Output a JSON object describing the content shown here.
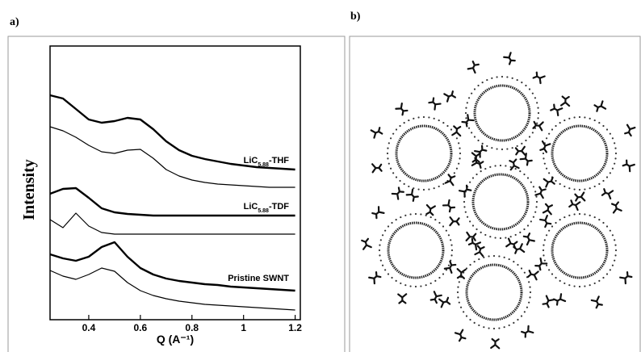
{
  "panel_labels": [
    "a)",
    "b)"
  ],
  "chart_data": {
    "type": "line",
    "ylabel": "Intensity",
    "xlabel": "Q (A⁻¹)",
    "x": [
      0.25,
      0.3,
      0.35,
      0.4,
      0.45,
      0.5,
      0.55,
      0.6,
      0.65,
      0.7,
      0.75,
      0.8,
      0.85,
      0.9,
      0.95,
      1.0,
      1.05,
      1.1,
      1.15,
      1.2
    ],
    "xlim": [
      0.25,
      1.22
    ],
    "xticks": [
      0.4,
      0.6,
      0.8,
      1,
      1.2
    ],
    "ylim": [
      0,
      33.9
    ],
    "series": [
      {
        "color": "#000000",
        "width": 2.4,
        "values": [
          27.8,
          27.4,
          26.1,
          24.8,
          24.4,
          24.6,
          25.0,
          24.8,
          23.6,
          22.1,
          21.0,
          20.3,
          19.9,
          19.6,
          19.3,
          19.1,
          18.9,
          18.8,
          18.7,
          18.6
        ]
      },
      {
        "color": "#000000",
        "width": 1.2,
        "values": [
          23.9,
          23.4,
          22.6,
          21.6,
          20.8,
          20.6,
          21.0,
          21.1,
          20.0,
          18.6,
          17.8,
          17.3,
          17.0,
          16.8,
          16.7,
          16.6,
          16.5,
          16.4,
          16.4,
          16.4
        ]
      },
      {
        "color": "#000000",
        "width": 2.4,
        "values": [
          15.6,
          16.2,
          16.3,
          15.1,
          13.8,
          13.3,
          13.1,
          13.0,
          12.9,
          12.9,
          12.9,
          12.9,
          12.9,
          12.9,
          12.9,
          12.9,
          12.9,
          12.9,
          12.9,
          12.9
        ]
      },
      {
        "color": "#000000",
        "width": 1.2,
        "values": [
          12.4,
          11.4,
          13.2,
          11.6,
          10.8,
          10.6,
          10.6,
          10.6,
          10.6,
          10.6,
          10.6,
          10.6,
          10.6,
          10.6,
          10.6,
          10.6,
          10.6,
          10.6,
          10.6,
          10.6
        ]
      },
      {
        "color": "#000000",
        "width": 2.4,
        "values": [
          8.1,
          7.6,
          7.3,
          7.8,
          9.0,
          9.6,
          7.8,
          6.4,
          5.6,
          5.1,
          4.8,
          4.6,
          4.4,
          4.3,
          4.1,
          4.0,
          3.9,
          3.8,
          3.7,
          3.6
        ]
      },
      {
        "color": "#000000",
        "width": 1.2,
        "values": [
          6.1,
          5.4,
          5.0,
          5.6,
          6.4,
          6.0,
          4.6,
          3.6,
          3.0,
          2.6,
          2.3,
          2.1,
          1.9,
          1.8,
          1.7,
          1.6,
          1.5,
          1.4,
          1.3,
          1.2
        ]
      }
    ],
    "annotations": [
      {
        "main": "LiC",
        "sub": "5.88",
        "suffix": "-THF"
      },
      {
        "main": "LiC",
        "sub": "5.88",
        "suffix": "-TDF"
      },
      {
        "main": "Pristine SWNT"
      }
    ]
  }
}
